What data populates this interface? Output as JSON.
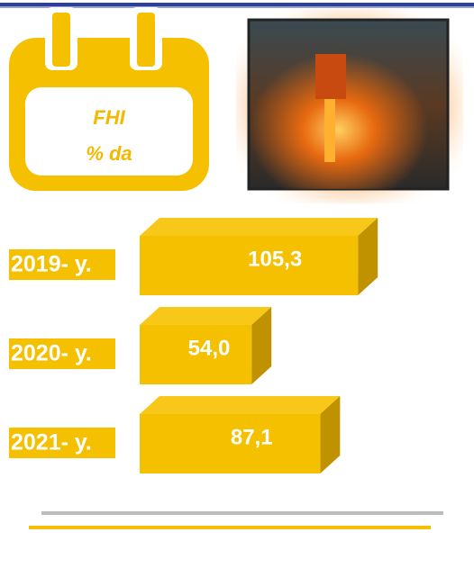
{
  "chart_data": {
    "type": "bar",
    "orientation": "horizontal",
    "title": "FHI",
    "subtitle": "% da",
    "categories": [
      "2019- y.",
      "2020- y.",
      "2021- y."
    ],
    "values": [
      105.3,
      54.0,
      87.1
    ],
    "value_labels": [
      "105,3",
      "54,0",
      "87,1"
    ],
    "color": "#f5c000"
  }
}
